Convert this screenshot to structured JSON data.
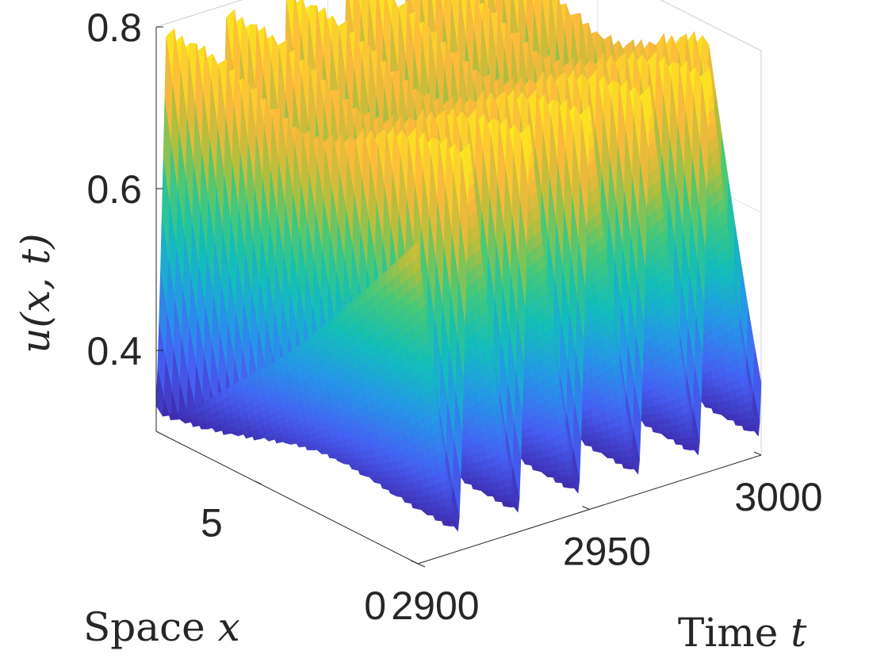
{
  "chart_data": {
    "type": "surface",
    "title": "",
    "xlabel": {
      "text": "Space ",
      "var": "x"
    },
    "ylabel": {
      "text": "Time ",
      "var": "t"
    },
    "zlabel": "u(x, t)",
    "xlim": [
      0,
      8
    ],
    "ylim": [
      2900,
      3000
    ],
    "zlim": [
      0.3,
      0.8
    ],
    "x_ticks": [
      {
        "value": 0,
        "label": "0"
      },
      {
        "value": 5,
        "label": "5"
      }
    ],
    "y_ticks": [
      {
        "value": 2900,
        "label": "2900"
      },
      {
        "value": 2950,
        "label": "2950"
      },
      {
        "value": 3000,
        "label": "3000"
      }
    ],
    "z_ticks": [
      {
        "value": 0.4,
        "label": "0.4"
      },
      {
        "value": 0.6,
        "label": "0.6"
      },
      {
        "value": 0.8,
        "label": "0.8"
      }
    ],
    "grid": true,
    "colormap": "parula",
    "surface": {
      "period_t": 17.5,
      "crest_t_at_x0": 2915,
      "crest_t_at_x8": 2903,
      "u_min": 0.32,
      "u_max": 0.8
    }
  }
}
